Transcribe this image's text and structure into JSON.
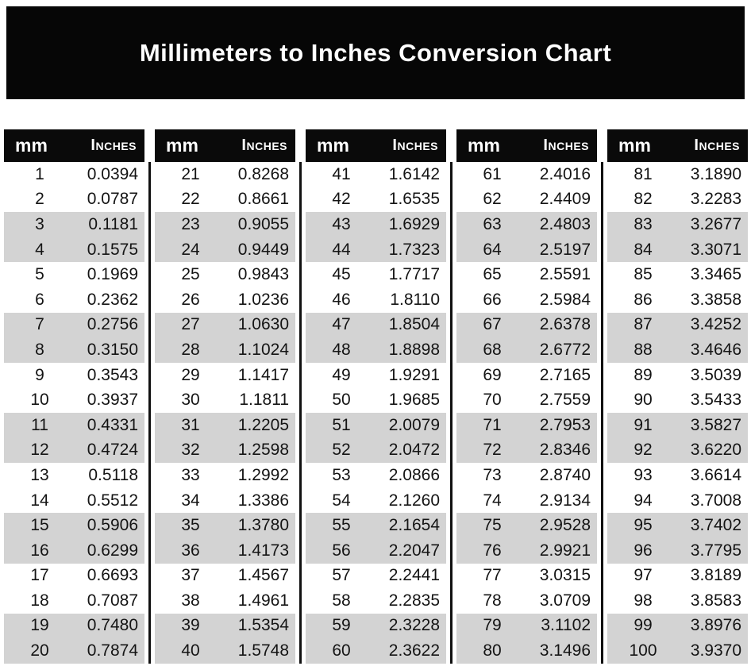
{
  "title": "Millimeters to Inches Conversion Chart",
  "table_header": {
    "mm_label": "mm",
    "inches_label": "Inches"
  },
  "colors": {
    "banner_bg": "#060606",
    "banner_text": "#ffffff",
    "header_bg": "#0a0a0a",
    "header_text": "#ffffff",
    "row_shade": "#d3d3d3",
    "row_text": "#141414",
    "separator": "#111111",
    "page_bg": "#ffffff"
  },
  "chart_data": {
    "type": "table",
    "title": "Millimeters to Inches Conversion Chart",
    "columns": [
      "mm",
      "Inches"
    ],
    "shading_pattern": "rows shaded in alternating pairs (rows 3-4, 7-8, 11-12, 15-16, 19-20 of each table)",
    "tables": [
      {
        "rows": [
          [
            "1",
            "0.0394"
          ],
          [
            "2",
            "0.0787"
          ],
          [
            "3",
            "0.1181"
          ],
          [
            "4",
            "0.1575"
          ],
          [
            "5",
            "0.1969"
          ],
          [
            "6",
            "0.2362"
          ],
          [
            "7",
            "0.2756"
          ],
          [
            "8",
            "0.3150"
          ],
          [
            "9",
            "0.3543"
          ],
          [
            "10",
            "0.3937"
          ],
          [
            "11",
            "0.4331"
          ],
          [
            "12",
            "0.4724"
          ],
          [
            "13",
            "0.5118"
          ],
          [
            "14",
            "0.5512"
          ],
          [
            "15",
            "0.5906"
          ],
          [
            "16",
            "0.6299"
          ],
          [
            "17",
            "0.6693"
          ],
          [
            "18",
            "0.7087"
          ],
          [
            "19",
            "0.7480"
          ],
          [
            "20",
            "0.7874"
          ]
        ]
      },
      {
        "rows": [
          [
            "21",
            "0.8268"
          ],
          [
            "22",
            "0.8661"
          ],
          [
            "23",
            "0.9055"
          ],
          [
            "24",
            "0.9449"
          ],
          [
            "25",
            "0.9843"
          ],
          [
            "26",
            "1.0236"
          ],
          [
            "27",
            "1.0630"
          ],
          [
            "28",
            "1.1024"
          ],
          [
            "29",
            "1.1417"
          ],
          [
            "30",
            "1.1811"
          ],
          [
            "31",
            "1.2205"
          ],
          [
            "32",
            "1.2598"
          ],
          [
            "33",
            "1.2992"
          ],
          [
            "34",
            "1.3386"
          ],
          [
            "35",
            "1.3780"
          ],
          [
            "36",
            "1.4173"
          ],
          [
            "37",
            "1.4567"
          ],
          [
            "38",
            "1.4961"
          ],
          [
            "39",
            "1.5354"
          ],
          [
            "40",
            "1.5748"
          ]
        ]
      },
      {
        "rows": [
          [
            "41",
            "1.6142"
          ],
          [
            "42",
            "1.6535"
          ],
          [
            "43",
            "1.6929"
          ],
          [
            "44",
            "1.7323"
          ],
          [
            "45",
            "1.7717"
          ],
          [
            "46",
            "1.8110"
          ],
          [
            "47",
            "1.8504"
          ],
          [
            "48",
            "1.8898"
          ],
          [
            "49",
            "1.9291"
          ],
          [
            "50",
            "1.9685"
          ],
          [
            "51",
            "2.0079"
          ],
          [
            "52",
            "2.0472"
          ],
          [
            "53",
            "2.0866"
          ],
          [
            "54",
            "2.1260"
          ],
          [
            "55",
            "2.1654"
          ],
          [
            "56",
            "2.2047"
          ],
          [
            "57",
            "2.2441"
          ],
          [
            "58",
            "2.2835"
          ],
          [
            "59",
            "2.3228"
          ],
          [
            "60",
            "2.3622"
          ]
        ]
      },
      {
        "rows": [
          [
            "61",
            "2.4016"
          ],
          [
            "62",
            "2.4409"
          ],
          [
            "63",
            "2.4803"
          ],
          [
            "64",
            "2.5197"
          ],
          [
            "65",
            "2.5591"
          ],
          [
            "66",
            "2.5984"
          ],
          [
            "67",
            "2.6378"
          ],
          [
            "68",
            "2.6772"
          ],
          [
            "69",
            "2.7165"
          ],
          [
            "70",
            "2.7559"
          ],
          [
            "71",
            "2.7953"
          ],
          [
            "72",
            "2.8346"
          ],
          [
            "73",
            "2.8740"
          ],
          [
            "74",
            "2.9134"
          ],
          [
            "75",
            "2.9528"
          ],
          [
            "76",
            "2.9921"
          ],
          [
            "77",
            "3.0315"
          ],
          [
            "78",
            "3.0709"
          ],
          [
            "79",
            "3.1102"
          ],
          [
            "80",
            "3.1496"
          ]
        ]
      },
      {
        "rows": [
          [
            "81",
            "3.1890"
          ],
          [
            "82",
            "3.2283"
          ],
          [
            "83",
            "3.2677"
          ],
          [
            "84",
            "3.3071"
          ],
          [
            "85",
            "3.3465"
          ],
          [
            "86",
            "3.3858"
          ],
          [
            "87",
            "3.4252"
          ],
          [
            "88",
            "3.4646"
          ],
          [
            "89",
            "3.5039"
          ],
          [
            "90",
            "3.5433"
          ],
          [
            "91",
            "3.5827"
          ],
          [
            "92",
            "3.6220"
          ],
          [
            "93",
            "3.6614"
          ],
          [
            "94",
            "3.7008"
          ],
          [
            "95",
            "3.7402"
          ],
          [
            "96",
            "3.7795"
          ],
          [
            "97",
            "3.8189"
          ],
          [
            "98",
            "3.8583"
          ],
          [
            "99",
            "3.8976"
          ],
          [
            "100",
            "3.9370"
          ]
        ]
      }
    ]
  }
}
